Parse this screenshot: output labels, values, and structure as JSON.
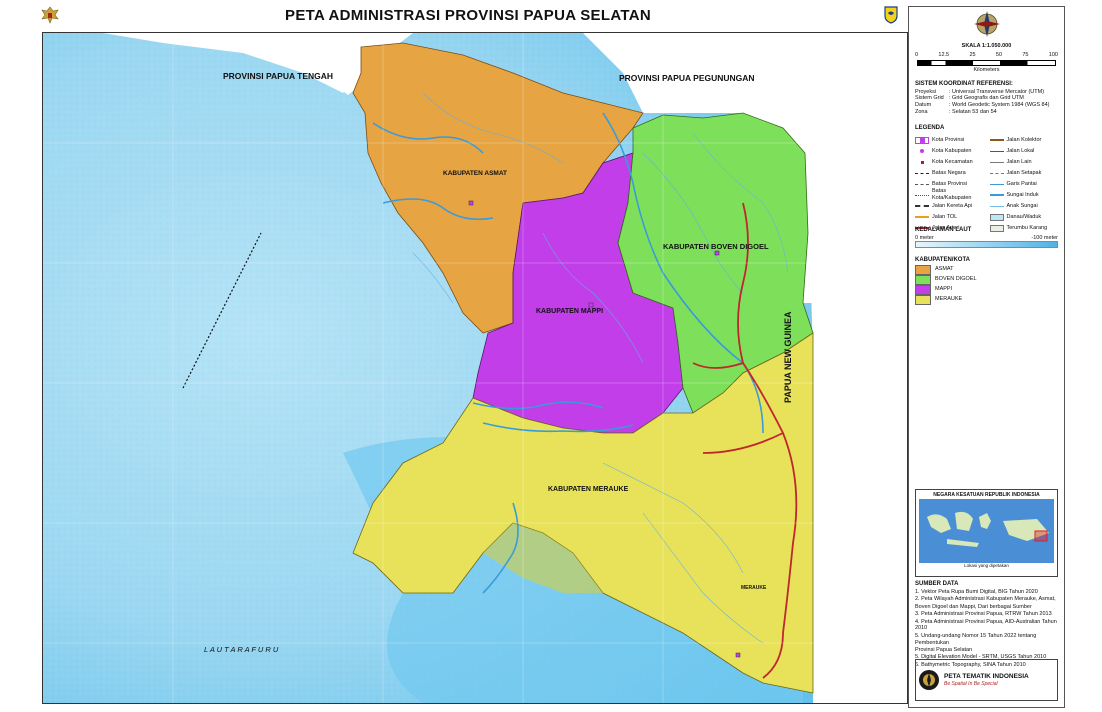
{
  "title": "PETA ADMINISTRASI PROVINSI PAPUA SELATAN",
  "scale": {
    "label": "SKALA 1:1.050.000",
    "ticks": [
      "0",
      "12.5",
      "25",
      "50",
      "75",
      "100"
    ],
    "unit": "Kilometers"
  },
  "reference": {
    "heading": "SISTEM KOORDINAT REFERENSI:",
    "rows": [
      {
        "k": "Proyeksi",
        "v": ": Universal Transverse Mercator (UTM)"
      },
      {
        "k": "Sistem Grid",
        "v": ": Grid Geografis dan Grid UTM"
      },
      {
        "k": "Datum",
        "v": ": World Geodetic System 1984 (WGS 84)"
      },
      {
        "k": "Zona",
        "v": ": Selatan 53 dan 54"
      }
    ]
  },
  "legend": {
    "heading": "LEGENDA",
    "left": [
      "Kota Provinsi",
      "Kota Kabupaten",
      "Kota Kecamatan",
      "Batas Negara",
      "Batas Provinsi",
      "Batas Kota/Kabupaten",
      "Jalan Kereta Api",
      "Jalan TOL",
      "Jalan Arteri"
    ],
    "right": [
      "Jalan Kolektor",
      "Jalan Lokal",
      "Jalan Lain",
      "Jalan Setapak",
      "Garis Pantai",
      "Sungai Induk",
      "Anak Sungai",
      "Danau/Waduk",
      "Terumbu Karang"
    ]
  },
  "depth": {
    "heading": "KEDALAMAN LAUT",
    "min": "0 meter",
    "max": "-100 meter"
  },
  "kabupaten": {
    "heading": "KABUPATEN/KOTA",
    "items": [
      {
        "name": "ASMAT",
        "color": "#e6a443"
      },
      {
        "name": "BOVEN DIGOEL",
        "color": "#7ee05a"
      },
      {
        "name": "MAPPI",
        "color": "#c13ee8"
      },
      {
        "name": "MERAUKE",
        "color": "#e8e25a"
      }
    ]
  },
  "inset": {
    "title": "NEGARA KESATUAN REPUBLIK INDONESIA",
    "caption": "Lokasi yang dipetakan"
  },
  "sources": {
    "heading": "SUMBER DATA",
    "items": [
      "1. Vektor Peta Rupa Bumi Digital, BIG Tahun 2020",
      "2. Peta Wilayah Administrasi Kabupaten Merauke, Asmat,",
      "    Boven Digoel dan Mappi, Dari berbagai Sumber",
      "3. Peta Administrasi Provinsi Papua, RTRW Tahun 2013",
      "4. Peta Administrasi Provinsi Papua, AID-Australian Tahun 2010",
      "5. Undang-undang Nomor 15 Tahun 2022 tentang Pembentukan",
      "    Provinsi Papua Selatan",
      "5. Digital Elevation Model - SRTM, USGS Tahun 2010",
      "6. Bathymetric Topography, SINA Tahun 2010"
    ]
  },
  "publisher": {
    "name": "PETA TEMATIK INDONESIA",
    "tagline": "Be Spatial In Be Special"
  },
  "map_labels": {
    "papua_tengah": "PROVINSI PAPUA TENGAH",
    "papua_pegunungan": "PROVINSI PAPUA PEGUNUNGAN",
    "png": "PAPUA NEW GUINEA",
    "asmat": "KABUPATEN ASMAT",
    "boven": "KABUPATEN BOVEN DIGOEL",
    "mappi": "KABUPATEN MAPPI",
    "merauke": "KABUPATEN MERAUKE",
    "laut": "L A U T     A R A F U R U",
    "merauke_city": "MERAUKE"
  },
  "colors": {
    "sea_light": "#8fd3f0",
    "sea_deep": "#b8e6f7",
    "sea_shallow": "#6fc6ee",
    "asmat": "#e6a443",
    "boven": "#7ee05a",
    "mappi": "#c13ee8",
    "merauke": "#e8e25a",
    "neighbor": "#ffffff",
    "road": "#c0272d",
    "river": "#3a9bd9"
  }
}
